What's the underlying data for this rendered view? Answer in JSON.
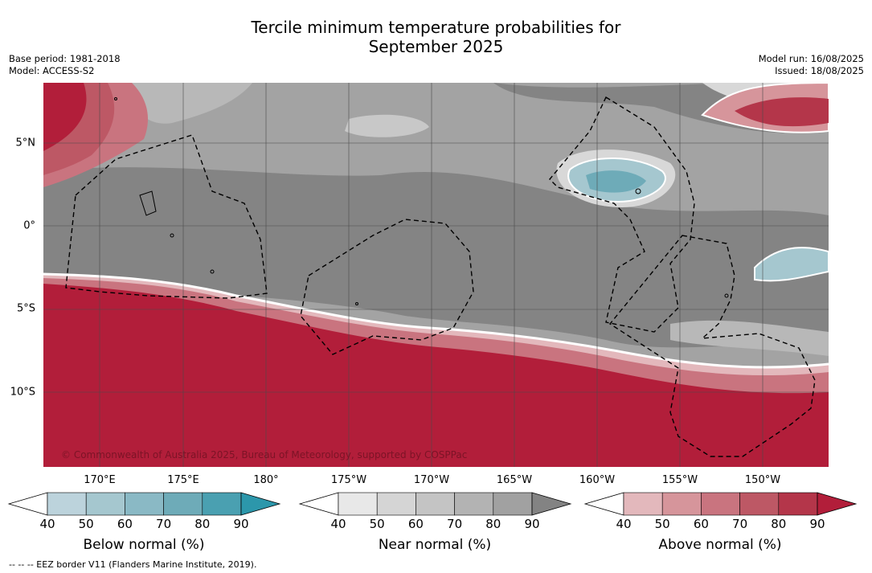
{
  "title": {
    "line1": "Tercile minimum temperature probabilities for",
    "line2": "September 2025"
  },
  "meta": {
    "base_period": "Base period: 1981-2018",
    "model": "Model: ACCESS-S2",
    "model_run": "Model run: 16/08/2025",
    "issued": "Issued: 18/08/2025"
  },
  "map": {
    "lat_labels": [
      "5°N",
      "0°",
      "5°S",
      "10°S"
    ],
    "lon_labels": [
      "170°E",
      "175°E",
      "180°",
      "175°W",
      "170°W",
      "165°W",
      "160°W",
      "155°W",
      "150°W"
    ],
    "copyright": "© Commonwealth of Australia 2025, Bureau of Meteorology, supported by COSPPac",
    "land_color": "#b21e3a"
  },
  "colorbars": [
    {
      "label": "Below normal (%)",
      "ticks": [
        "40",
        "50",
        "60",
        "70",
        "80",
        "90"
      ],
      "colors": [
        "#ffffff",
        "#bcd3dc",
        "#a5c7cf",
        "#8ab9c5",
        "#6eabb8",
        "#4aa0b1",
        "#2c97ab"
      ]
    },
    {
      "label": "Near normal (%)",
      "ticks": [
        "40",
        "50",
        "60",
        "70",
        "80",
        "90"
      ],
      "colors": [
        "#ffffff",
        "#e8e8e8",
        "#d5d5d5",
        "#c4c4c4",
        "#b3b3b3",
        "#a1a1a1",
        "#838383"
      ]
    },
    {
      "label": "Above normal (%)",
      "ticks": [
        "40",
        "50",
        "60",
        "70",
        "80",
        "90"
      ],
      "colors": [
        "#ffffff",
        "#e3b8bc",
        "#d6959b",
        "#c9747f",
        "#bd5865",
        "#b4364a",
        "#b21e3a"
      ]
    }
  ],
  "footer": "--  --  -- EEZ border V11 (Flanders Marine Institute, 2019)."
}
